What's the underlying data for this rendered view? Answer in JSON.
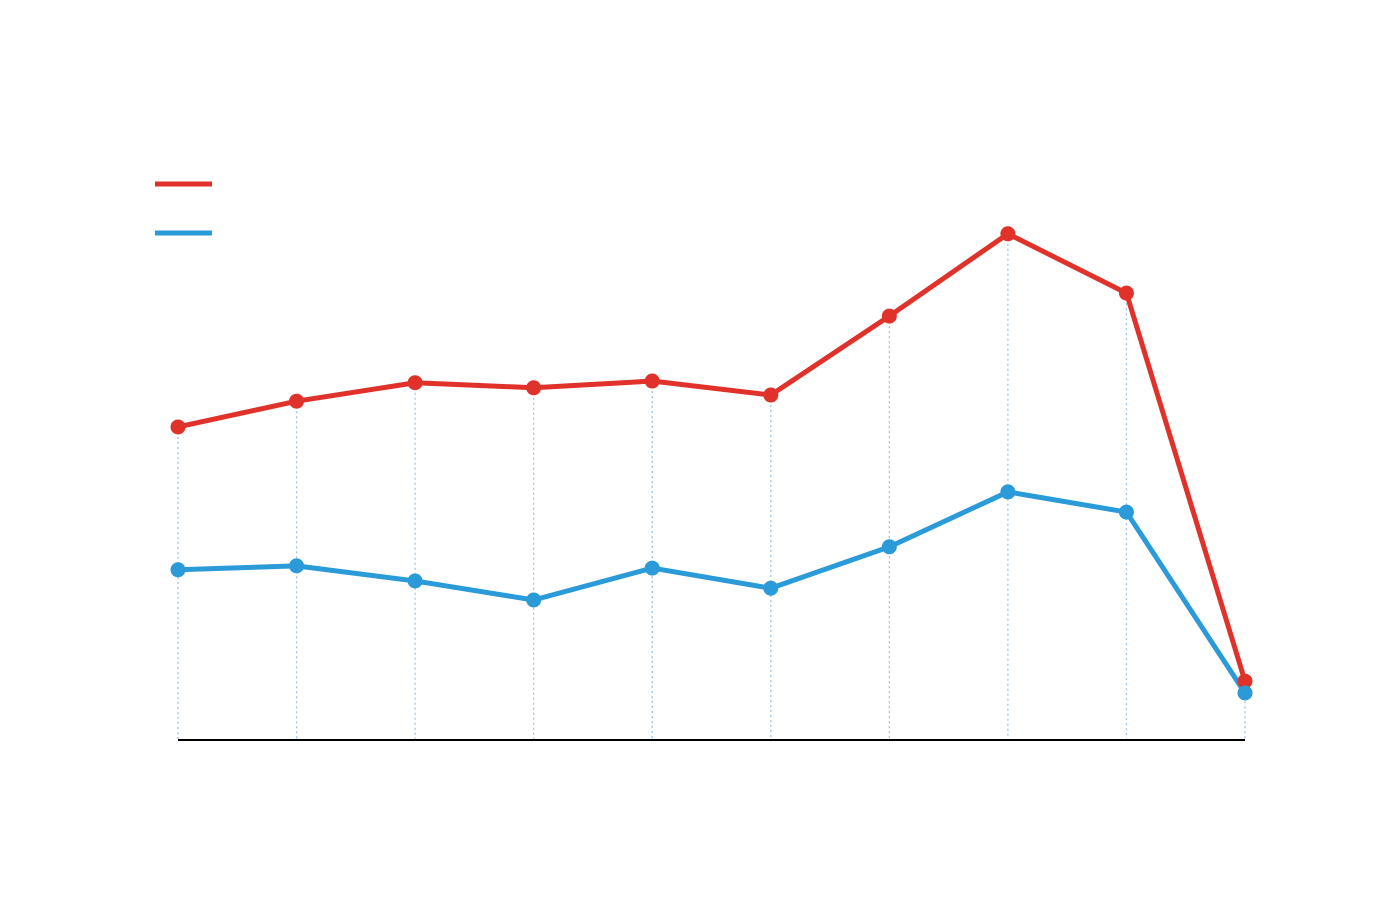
{
  "chart_data": {
    "type": "line",
    "categories": [
      null,
      null,
      null,
      null,
      null,
      null,
      null,
      null,
      null,
      null
    ],
    "series": [
      {
        "color": "#e0322b",
        "values": [
          55.9,
          60.5,
          63.8,
          62.9,
          64.1,
          61.6,
          75.7,
          90.4,
          79.8,
          10.5
        ]
      },
      {
        "color": "#2a9ad8",
        "values": [
          30.4,
          31.1,
          28.4,
          25.0,
          30.7,
          27.1,
          34.5,
          44.3,
          40.7,
          8.4
        ]
      }
    ],
    "ylim": [
      0,
      100
    ],
    "grid": "x",
    "legend": "upper left"
  }
}
